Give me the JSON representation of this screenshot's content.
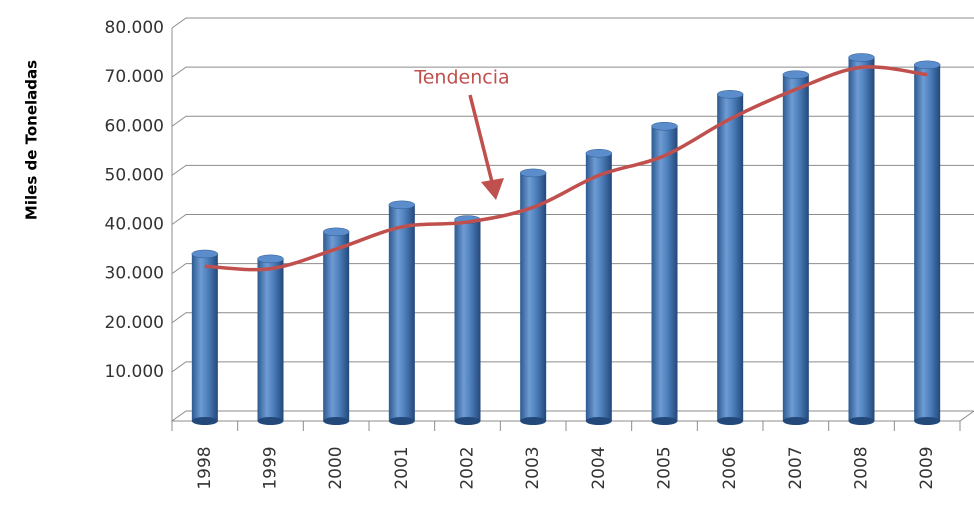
{
  "chart_data": {
    "type": "bar",
    "y_label": "Miles de Toneladas",
    "categories": [
      "1998",
      "1999",
      "2000",
      "2001",
      "2002",
      "2003",
      "2004",
      "2005",
      "2006",
      "2007",
      "2008",
      "2009"
    ],
    "series": [
      {
        "type": "bar",
        "color": "#4f81bd",
        "values": [
          34000,
          33000,
          38500,
          44000,
          41000,
          50500,
          54500,
          60000,
          66500,
          70500,
          74000,
          72500
        ]
      },
      {
        "type": "line",
        "name": "Tendencia",
        "color": "#c0504d",
        "values": [
          31500,
          31000,
          35000,
          39500,
          40500,
          43500,
          50000,
          54000,
          61500,
          67500,
          72000,
          70500
        ]
      }
    ],
    "ylim": [
      0,
      80000
    ],
    "yticks": [
      {
        "value": 10000,
        "label": "10.000"
      },
      {
        "value": 20000,
        "label": "20.000"
      },
      {
        "value": 30000,
        "label": "30.000"
      },
      {
        "value": 40000,
        "label": "40.000"
      },
      {
        "value": 50000,
        "label": "50.000"
      },
      {
        "value": 60000,
        "label": "60.000"
      },
      {
        "value": 70000,
        "label": "70.000"
      },
      {
        "value": 80000,
        "label": "80.000"
      }
    ],
    "grid": true
  }
}
